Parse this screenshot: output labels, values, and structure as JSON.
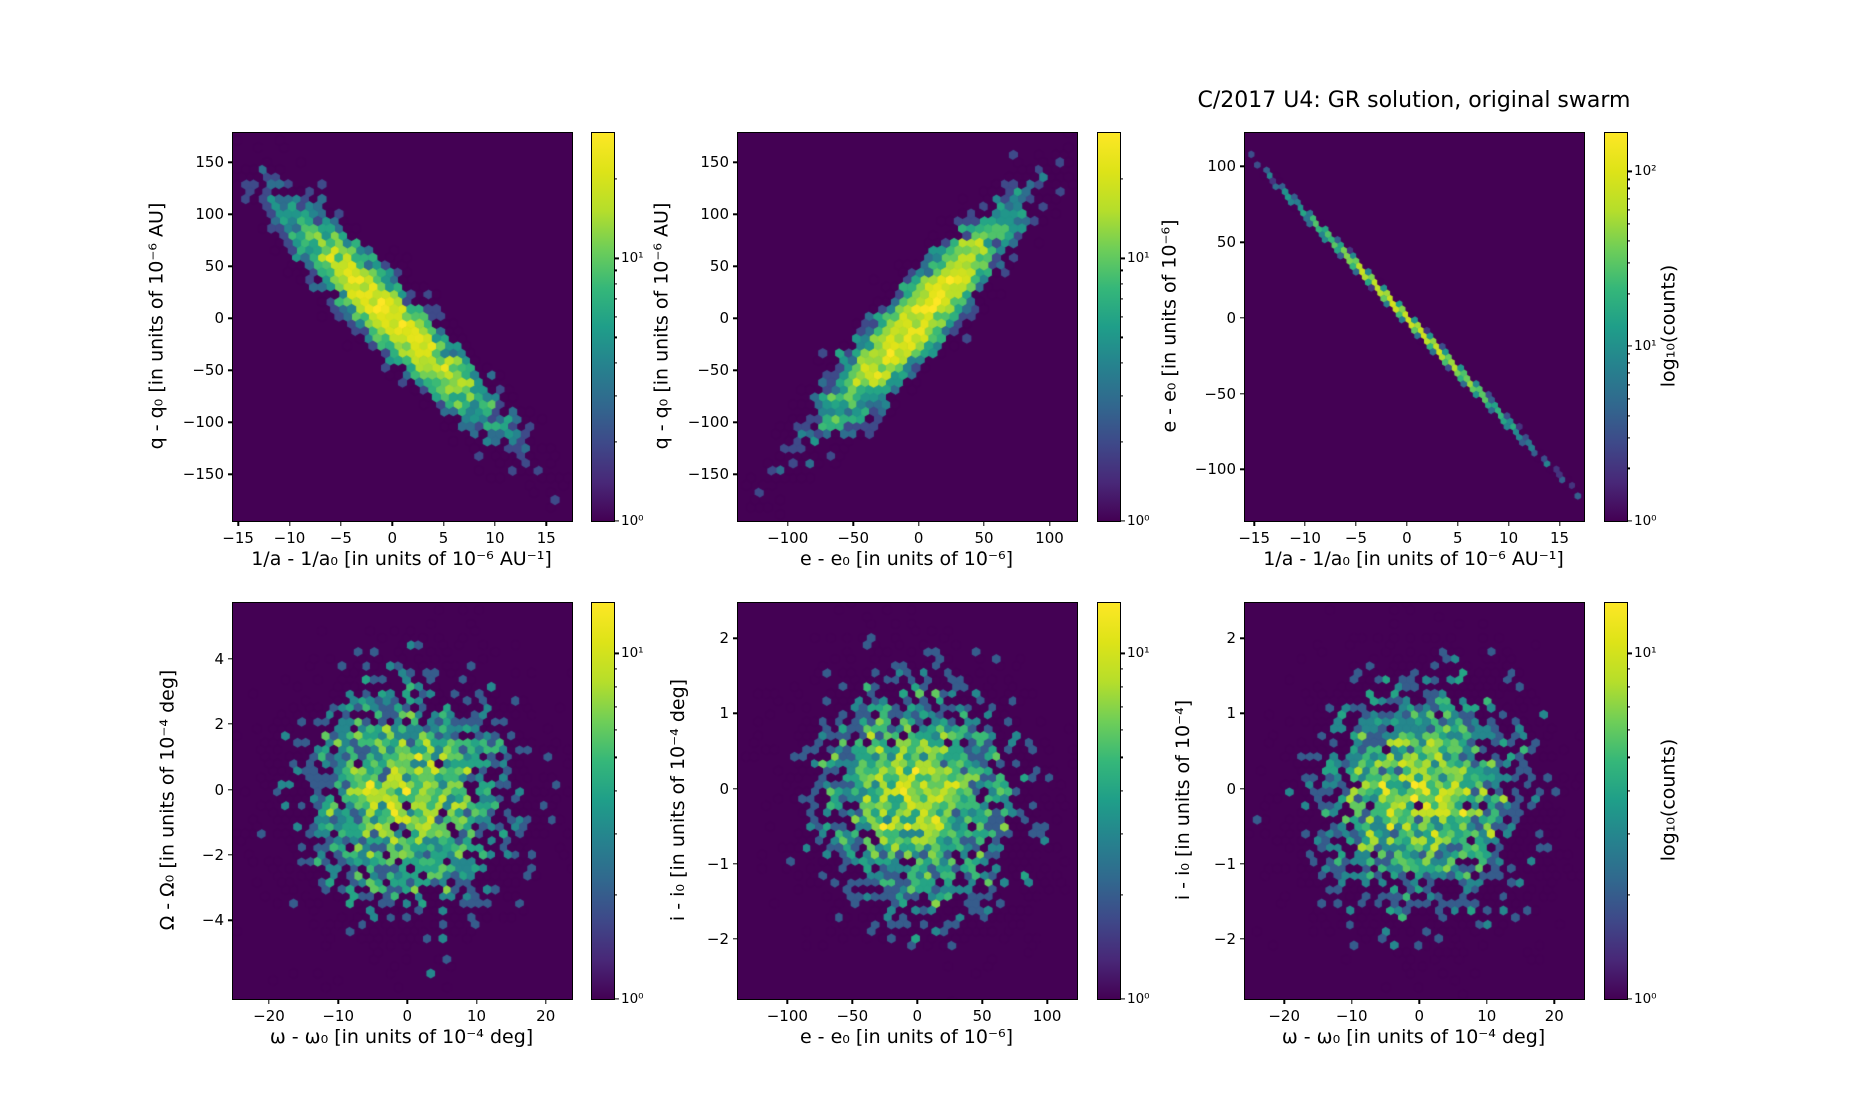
{
  "title": "C/2017 U4:  GR solution, original swarm",
  "colorbar_label": "log₁₀(counts)",
  "colors": {
    "figure_background": "#ffffff",
    "axes_background": "#440154",
    "spine": "#000000",
    "text": "#000000",
    "viridis": [
      "#440154",
      "#482878",
      "#3e4989",
      "#31688e",
      "#26828e",
      "#1f9e89",
      "#35b779",
      "#6ece58",
      "#b5de2b",
      "#dde318",
      "#fde725"
    ]
  },
  "chart_data": [
    {
      "type": "hexbin",
      "xlabel": "1/a - 1/a₀ [in units of 10⁻⁶ AU⁻¹]",
      "ylabel": "q - q₀ [in units of 10⁻⁶ AU]",
      "xlim": [
        -15.5,
        17.5
      ],
      "ylim": [
        -195,
        178
      ],
      "xticks": [
        -15,
        -10,
        -5,
        0,
        5,
        10,
        15
      ],
      "yticks": [
        150,
        100,
        50,
        0,
        -50,
        -100,
        -150
      ],
      "grid": false,
      "colorscale": "log",
      "vmin": 1,
      "vmax": 30,
      "cbar_ticks": [
        10,
        1
      ],
      "cbar_tick_labels": [
        "10¹",
        "10⁰"
      ],
      "distribution": {
        "shape": "gaussian",
        "n": 3000,
        "center": [
          0,
          0
        ],
        "sigma_x": 5.5,
        "sigma_y": 57,
        "rho": -0.94,
        "gridsize": 40,
        "seed": 7
      }
    },
    {
      "type": "hexbin",
      "xlabel": "e - e₀ [in units of 10⁻⁶]",
      "ylabel": "q - q₀ [in units of 10⁻⁶ AU]",
      "xlim": [
        -138,
        121
      ],
      "ylim": [
        -195,
        178
      ],
      "xticks": [
        -100,
        -50,
        0,
        50,
        100
      ],
      "yticks": [
        150,
        100,
        50,
        0,
        -50,
        -100,
        -150
      ],
      "grid": false,
      "colorscale": "log",
      "vmin": 1,
      "vmax": 30,
      "cbar_ticks": [
        10,
        1
      ],
      "cbar_tick_labels": [
        "10¹",
        "10⁰"
      ],
      "distribution": {
        "shape": "gaussian",
        "n": 3000,
        "center": [
          0,
          0
        ],
        "sigma_x": 40,
        "sigma_y": 57,
        "rho": 0.92,
        "gridsize": 40,
        "seed": 13
      }
    },
    {
      "type": "hexbin",
      "xlabel": "1/a - 1/a₀ [in units of 10⁻⁶ AU⁻¹]",
      "ylabel": "e - e₀ [in units of 10⁻⁶]",
      "xlim": [
        -15.9,
        17.4
      ],
      "ylim": [
        -134,
        122
      ],
      "xticks": [
        -15,
        -10,
        -5,
        0,
        5,
        10,
        15
      ],
      "yticks": [
        100,
        50,
        0,
        -50,
        -100
      ],
      "grid": false,
      "colorscale": "log",
      "vmin": 1,
      "vmax": 166,
      "cbar_ticks": [
        100,
        10,
        1
      ],
      "cbar_tick_labels": [
        "10²",
        "10¹",
        "10⁰"
      ],
      "distribution": {
        "shape": "gaussian",
        "n": 3000,
        "center": [
          0,
          0
        ],
        "sigma_x": 5.5,
        "sigma_y": 38.2,
        "rho": -0.9995,
        "gridsize": 55,
        "seed": 21
      }
    },
    {
      "type": "hexbin",
      "xlabel": "ω - ω₀ [in units of 10⁻⁴ deg]",
      "ylabel": "Ω - Ω₀ [in units of 10⁻⁴ deg]",
      "xlim": [
        -25.2,
        23.8
      ],
      "ylim": [
        -6.4,
        5.7
      ],
      "xticks": [
        -20,
        -10,
        0,
        10,
        20
      ],
      "yticks": [
        4,
        2,
        0,
        -2,
        -4
      ],
      "grid": false,
      "colorscale": "log",
      "vmin": 1,
      "vmax": 14,
      "cbar_ticks": [
        10,
        1
      ],
      "cbar_tick_labels": [
        "10¹",
        "10⁰"
      ],
      "distribution": {
        "shape": "gaussian",
        "n": 3000,
        "center": [
          0,
          -0.3
        ],
        "sigma_x": 8.5,
        "sigma_y": 1.9,
        "rho": 0.02,
        "gridsize": 42,
        "seed": 31
      }
    },
    {
      "type": "hexbin",
      "xlabel": "e - e₀ [in units of 10⁻⁶]",
      "ylabel": "i - i₀ [in units of 10⁻⁴ deg]",
      "xlim": [
        -138,
        123
      ],
      "ylim": [
        -2.8,
        2.47
      ],
      "xticks": [
        -100,
        -50,
        0,
        50,
        100
      ],
      "yticks": [
        2,
        1,
        0,
        -1,
        -2
      ],
      "grid": false,
      "colorscale": "log",
      "vmin": 1,
      "vmax": 14,
      "cbar_ticks": [
        10,
        1
      ],
      "cbar_tick_labels": [
        "10¹",
        "10⁰"
      ],
      "distribution": {
        "shape": "gaussian",
        "n": 3000,
        "center": [
          0,
          -0.1
        ],
        "sigma_x": 42,
        "sigma_y": 0.85,
        "rho": -0.12,
        "gridsize": 42,
        "seed": 41
      }
    },
    {
      "type": "hexbin",
      "xlabel": "ω - ω₀ [in units of 10⁻⁴ deg]",
      "ylabel": "i - i₀ [in units of 10⁻⁴]",
      "xlim": [
        -25.8,
        24.4
      ],
      "ylim": [
        -2.8,
        2.47
      ],
      "xticks": [
        -20,
        -10,
        0,
        10,
        20
      ],
      "yticks": [
        2,
        1,
        0,
        -1,
        -2
      ],
      "grid": false,
      "colorscale": "log",
      "vmin": 1,
      "vmax": 14,
      "cbar_ticks": [
        10,
        1
      ],
      "cbar_tick_labels": [
        "10¹",
        "10⁰"
      ],
      "distribution": {
        "shape": "gaussian",
        "n": 3000,
        "center": [
          0,
          -0.1
        ],
        "sigma_x": 8.5,
        "sigma_y": 0.85,
        "rho": 0.05,
        "gridsize": 42,
        "seed": 51
      }
    }
  ]
}
